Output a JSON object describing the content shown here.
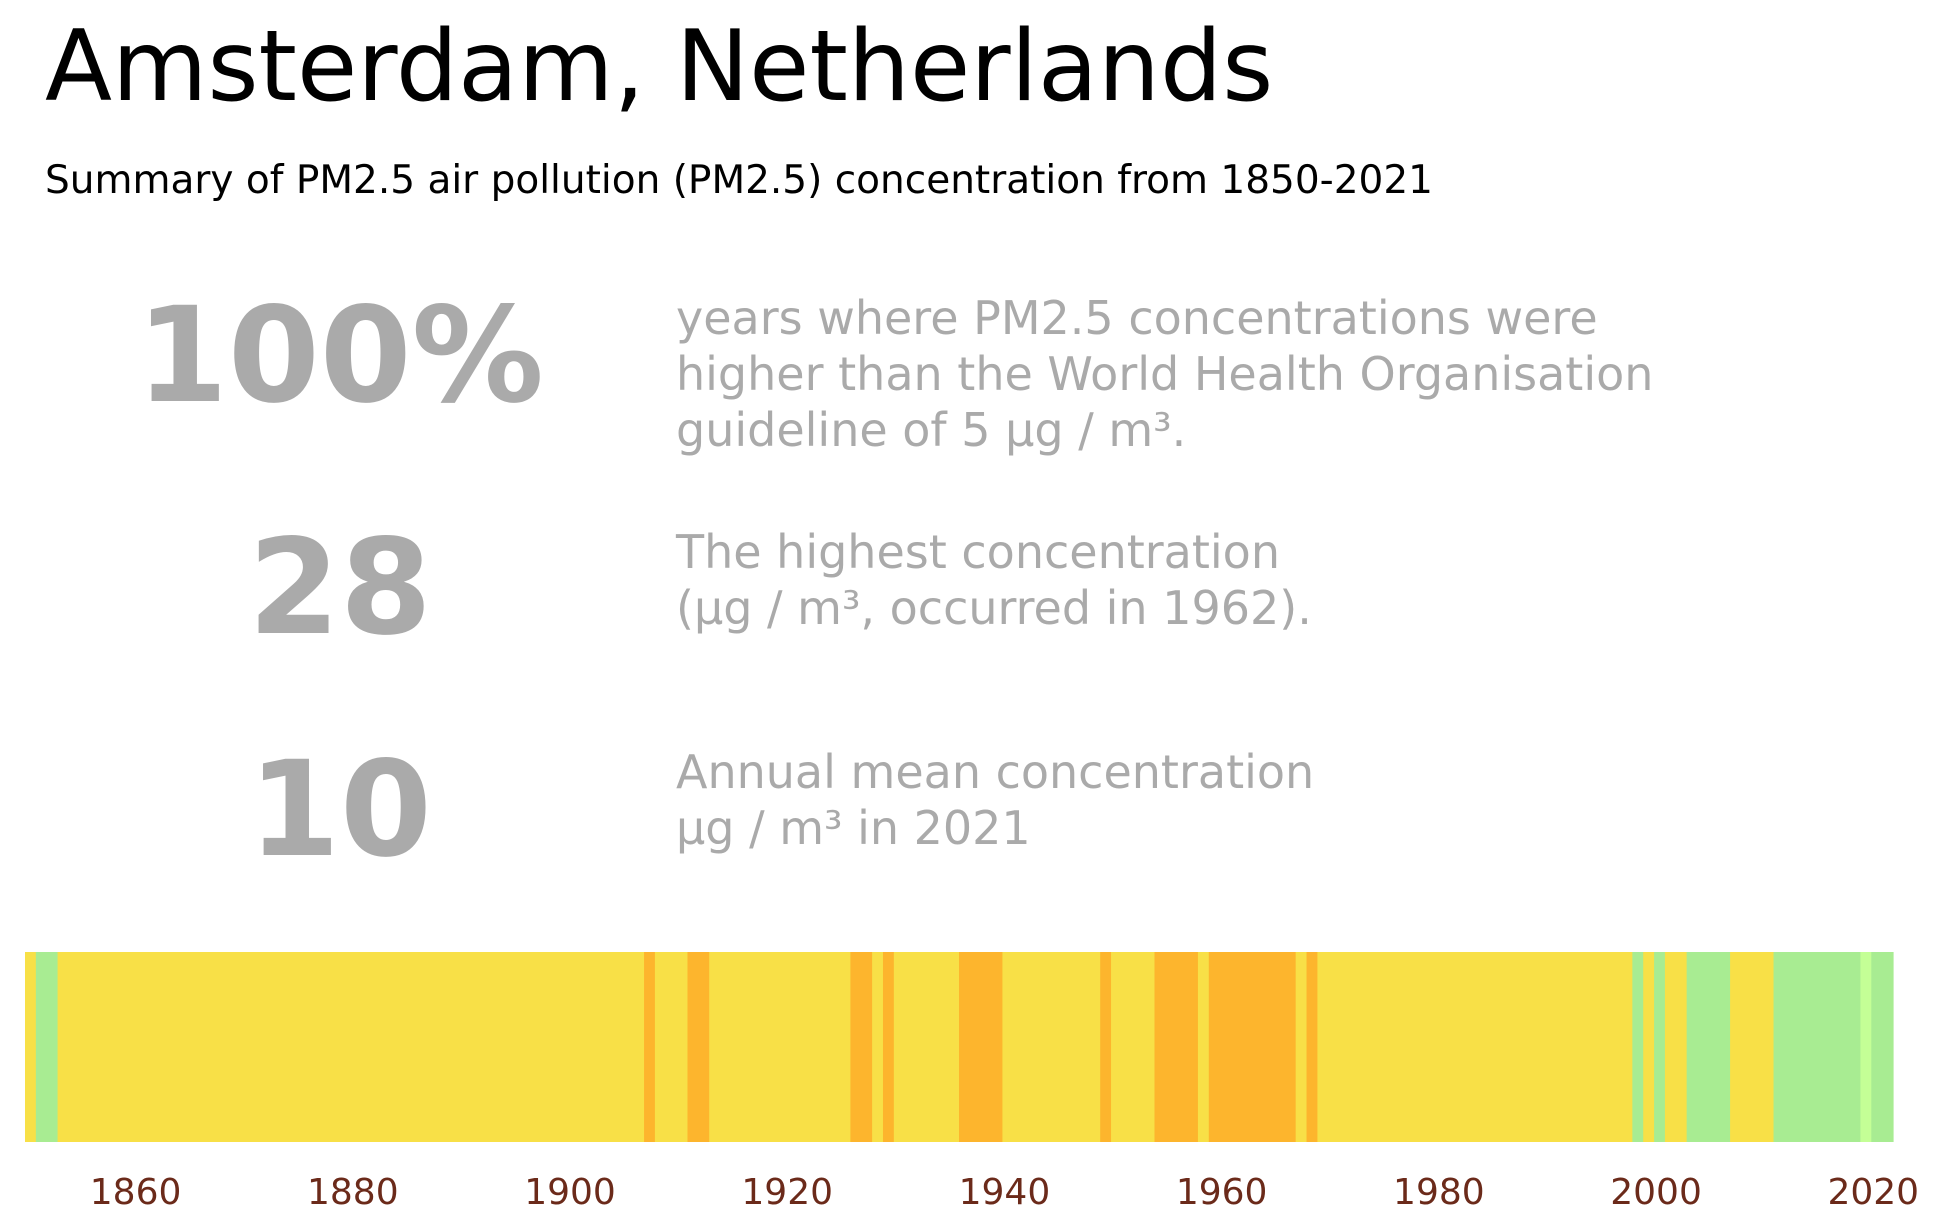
{
  "header": {
    "title": "Amsterdam, Netherlands",
    "subtitle": "Summary of PM2.5 air pollution (PM2.5) concentration from 1850-2021"
  },
  "stats": [
    {
      "value": "100%",
      "line1": "years where PM2.5 concentrations were",
      "line2": "higher than the World Health Organisation",
      "line3": "guideline of 5 µg / m³."
    },
    {
      "value": "28",
      "line1": "The highest concentration",
      "line2": "(µg / m³, occurred in 1962)."
    },
    {
      "value": "10",
      "line1": "Annual mean concentration",
      "line2": "µg / m³ in 2021"
    }
  ],
  "colors": {
    "stat_text": "#aaaaaa",
    "tick_text": "#6b2a1a",
    "level_colors": {
      "light_green": "#c4ff96",
      "green": "#a8ec92",
      "yellow": "#f8e047",
      "orange": "#fdb52d"
    }
  },
  "chart_data": {
    "type": "heatmap",
    "x_range": [
      1850,
      2021
    ],
    "xticks": [
      1860,
      1880,
      1900,
      1920,
      1940,
      1960,
      1980,
      2000,
      2020
    ],
    "segments": [
      {
        "start": 1850,
        "end": 1851,
        "level": "yellow"
      },
      {
        "start": 1851,
        "end": 1853,
        "level": "green"
      },
      {
        "start": 1853,
        "end": 1907,
        "level": "yellow"
      },
      {
        "start": 1907,
        "end": 1908,
        "level": "orange"
      },
      {
        "start": 1908,
        "end": 1911,
        "level": "yellow"
      },
      {
        "start": 1911,
        "end": 1913,
        "level": "orange"
      },
      {
        "start": 1913,
        "end": 1926,
        "level": "yellow"
      },
      {
        "start": 1926,
        "end": 1928,
        "level": "orange"
      },
      {
        "start": 1928,
        "end": 1929,
        "level": "yellow"
      },
      {
        "start": 1929,
        "end": 1930,
        "level": "orange"
      },
      {
        "start": 1930,
        "end": 1936,
        "level": "yellow"
      },
      {
        "start": 1936,
        "end": 1940,
        "level": "orange"
      },
      {
        "start": 1940,
        "end": 1949,
        "level": "yellow"
      },
      {
        "start": 1949,
        "end": 1950,
        "level": "orange"
      },
      {
        "start": 1950,
        "end": 1954,
        "level": "yellow"
      },
      {
        "start": 1954,
        "end": 1958,
        "level": "orange"
      },
      {
        "start": 1958,
        "end": 1959,
        "level": "yellow"
      },
      {
        "start": 1959,
        "end": 1967,
        "level": "orange"
      },
      {
        "start": 1967,
        "end": 1968,
        "level": "yellow"
      },
      {
        "start": 1968,
        "end": 1969,
        "level": "orange"
      },
      {
        "start": 1969,
        "end": 1998,
        "level": "yellow"
      },
      {
        "start": 1998,
        "end": 1999,
        "level": "green"
      },
      {
        "start": 1999,
        "end": 2000,
        "level": "yellow"
      },
      {
        "start": 2000,
        "end": 2001,
        "level": "green"
      },
      {
        "start": 2001,
        "end": 2003,
        "level": "yellow"
      },
      {
        "start": 2003,
        "end": 2007,
        "level": "green"
      },
      {
        "start": 2007,
        "end": 2011,
        "level": "yellow"
      },
      {
        "start": 2011,
        "end": 2019,
        "level": "green"
      },
      {
        "start": 2019,
        "end": 2020,
        "level": "light_green"
      },
      {
        "start": 2020,
        "end": 2022,
        "level": "green"
      }
    ]
  }
}
